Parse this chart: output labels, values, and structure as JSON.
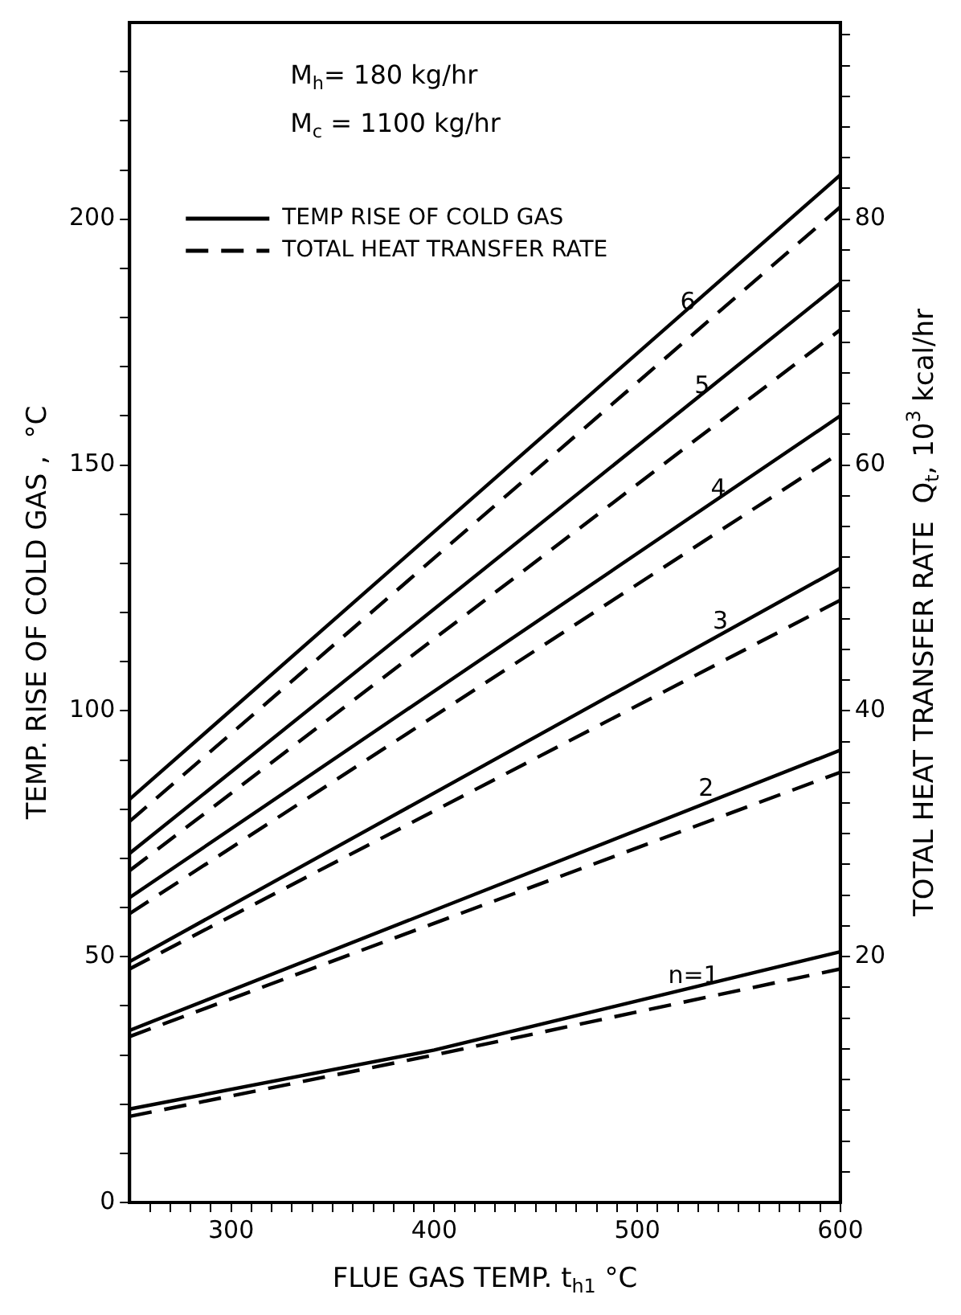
{
  "chart_data": {
    "type": "line",
    "xlabel": "FLUE GAS TEMP. t$_{h1}$ °C",
    "ylabel": "TEMP. RISE OF COLD GAS ,  °C",
    "y2label": "TOTAL HEAT TRANSFER RATE  Q$_{t}$, 10$^{3}$ kcal/hr",
    "xlim": [
      250,
      600
    ],
    "xticks": [
      {
        "value": 260,
        "label": null
      },
      {
        "value": 270,
        "label": null
      },
      {
        "value": 280,
        "label": null
      },
      {
        "value": 290,
        "label": null
      },
      300,
      {
        "value": 310,
        "label": null
      },
      {
        "value": 320,
        "label": null
      },
      {
        "value": 330,
        "label": null
      },
      {
        "value": 340,
        "label": null
      },
      {
        "value": 350,
        "label": null
      },
      {
        "value": 360,
        "label": null
      },
      {
        "value": 370,
        "label": null
      },
      {
        "value": 380,
        "label": null
      },
      {
        "value": 390,
        "label": null
      },
      400,
      {
        "value": 410,
        "label": null
      },
      {
        "value": 420,
        "label": null
      },
      {
        "value": 430,
        "label": null
      },
      {
        "value": 440,
        "label": null
      },
      {
        "value": 450,
        "label": null
      },
      {
        "value": 460,
        "label": null
      },
      {
        "value": 470,
        "label": null
      },
      {
        "value": 480,
        "label": null
      },
      {
        "value": 490,
        "label": null
      },
      500,
      {
        "value": 510,
        "label": null
      },
      {
        "value": 520,
        "label": null
      },
      {
        "value": 530,
        "label": null
      },
      {
        "value": 540,
        "label": null
      },
      {
        "value": 550,
        "label": null
      },
      {
        "value": 560,
        "label": null
      },
      {
        "value": 570,
        "label": null
      },
      {
        "value": 580,
        "label": null
      },
      {
        "value": 590,
        "label": null
      },
      600
    ],
    "ylim": [
      0,
      240
    ],
    "yticks": [
      0,
      {
        "value": 10,
        "label": null
      },
      {
        "value": 20,
        "label": null
      },
      {
        "value": 30,
        "label": null
      },
      {
        "value": 40,
        "label": null
      },
      50,
      {
        "value": 60,
        "label": null
      },
      {
        "value": 70,
        "label": null
      },
      {
        "value": 80,
        "label": null
      },
      {
        "value": 90,
        "label": null
      },
      100,
      {
        "value": 110,
        "label": null
      },
      {
        "value": 120,
        "label": null
      },
      {
        "value": 130,
        "label": null
      },
      {
        "value": 140,
        "label": null
      },
      150,
      {
        "value": 160,
        "label": null
      },
      {
        "value": 170,
        "label": null
      },
      {
        "value": 180,
        "label": null
      },
      {
        "value": 190,
        "label": null
      },
      200,
      {
        "value": 210,
        "label": null
      },
      {
        "value": 220,
        "label": null
      },
      {
        "value": 230,
        "label": null
      }
    ],
    "y2lim": [
      0,
      96
    ],
    "y2ticks": [
      {
        "value": 2.5,
        "label": null
      },
      {
        "value": 5,
        "label": null
      },
      {
        "value": 7.5,
        "label": null
      },
      {
        "value": 10,
        "label": null
      },
      {
        "value": 12.5,
        "label": null
      },
      {
        "value": 15,
        "label": null
      },
      {
        "value": 17.5,
        "label": null
      },
      20,
      {
        "value": 22.5,
        "label": null
      },
      {
        "value": 25,
        "label": null
      },
      {
        "value": 27.5,
        "label": null
      },
      {
        "value": 30,
        "label": null
      },
      {
        "value": 32.5,
        "label": null
      },
      {
        "value": 35,
        "label": null
      },
      {
        "value": 37.5,
        "label": null
      },
      40,
      {
        "value": 42.5,
        "label": null
      },
      {
        "value": 45,
        "label": null
      },
      {
        "value": 47.5,
        "label": null
      },
      {
        "value": 50,
        "label": null
      },
      {
        "value": 52.5,
        "label": null
      },
      {
        "value": 55,
        "label": null
      },
      {
        "value": 57.5,
        "label": null
      },
      60,
      {
        "value": 62.5,
        "label": null
      },
      {
        "value": 65,
        "label": null
      },
      {
        "value": 67.5,
        "label": null
      },
      {
        "value": 70,
        "label": null
      },
      {
        "value": 72.5,
        "label": null
      },
      {
        "value": 75,
        "label": null
      },
      {
        "value": 77.5,
        "label": null
      },
      80,
      {
        "value": 82.5,
        "label": null
      },
      {
        "value": 85,
        "label": null
      },
      {
        "value": 87.5,
        "label": null
      },
      {
        "value": 90,
        "label": null
      },
      {
        "value": 92.5,
        "label": null
      },
      {
        "value": 95,
        "label": null
      }
    ],
    "grid": false,
    "legend": "top left",
    "marker": "none",
    "annotations": [
      "M$_{h}$= 180 kg/hr",
      "M$_{c}$ = 1100 kg/hr",
      {
        "text": "n=1",
        "x": 512,
        "y": 42
      },
      {
        "text": "2",
        "x": 527,
        "y": 80
      },
      {
        "text": "3",
        "x": 534,
        "y": 114
      },
      {
        "text": "4",
        "x": 533,
        "y": 141
      },
      {
        "text": "5",
        "x": 525,
        "y": 162
      },
      {
        "text": "6",
        "x": 518,
        "y": 179
      }
    ],
    "series": [
      {
        "name": "TEMP RISE OF COLD GAS",
        "color": "#000000",
        "line_style": "solid",
        "x": [
          250,
          600
        ],
        "values": [
          82,
          209
        ]
      },
      {
        "color": "#000000",
        "line_style": "solid",
        "x": [
          250,
          600
        ],
        "values": [
          71,
          187
        ]
      },
      {
        "color": "#000000",
        "line_style": "solid",
        "x": [
          250,
          600
        ],
        "values": [
          62,
          160
        ]
      },
      {
        "color": "#000000",
        "line_style": "solid",
        "x": [
          250,
          600
        ],
        "values": [
          49,
          129
        ]
      },
      {
        "color": "#000000",
        "line_style": "solid",
        "x": [
          250,
          600
        ],
        "values": [
          35,
          92
        ]
      },
      {
        "color": "#000000",
        "line_style": "solid",
        "x": [
          250,
          400,
          600
        ],
        "values": [
          19,
          31,
          51
        ]
      },
      {
        "name": "TOTAL HEAT TRANSFER RATE",
        "color": "#000000",
        "line_style": "dashed",
        "axis": "y2",
        "x": [
          250,
          600
        ],
        "values": [
          31,
          81
        ]
      },
      {
        "color": "#000000",
        "line_style": "dashed",
        "axis": "y2",
        "x": [
          250,
          600
        ],
        "values": [
          27,
          71
        ]
      },
      {
        "color": "#000000",
        "line_style": "dashed",
        "axis": "y2",
        "x": [
          250,
          600
        ],
        "values": [
          23.5,
          61
        ]
      },
      {
        "color": "#000000",
        "line_style": "dashed",
        "axis": "y2",
        "x": [
          250,
          600
        ],
        "values": [
          19,
          49
        ]
      },
      {
        "color": "#000000",
        "line_style": "dashed",
        "axis": "y2",
        "x": [
          250,
          600
        ],
        "values": [
          13.5,
          35
        ]
      },
      {
        "color": "#000000",
        "line_style": "dashed",
        "axis": "y2",
        "x": [
          250,
          400,
          600
        ],
        "values": [
          7,
          12,
          19
        ]
      }
    ]
  }
}
